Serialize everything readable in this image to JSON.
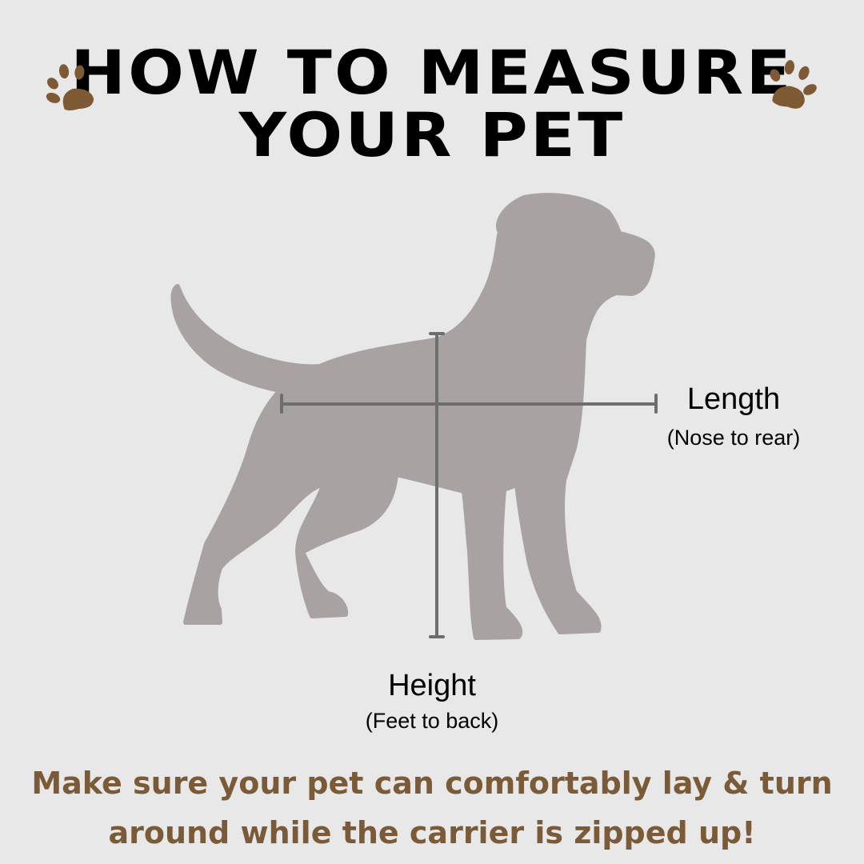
{
  "title": {
    "line1": "HOW TO MEASURE",
    "line2": "YOUR PET"
  },
  "measurements": {
    "length": {
      "label": "Length",
      "sub": "(Nose to rear)"
    },
    "height": {
      "label": "Height",
      "sub": "(Feet to back)"
    }
  },
  "note": {
    "line1": "Make sure your pet can comfortably lay & turn",
    "line2": "around while the carrier is zipped up!"
  },
  "icons": [
    "paw-print-icon",
    "dog-silhouette"
  ],
  "colors": {
    "background": "#e8e8e8",
    "paw": "#7e5a34",
    "dog": "#a8a3a2",
    "measure_line": "#6e6e6e",
    "note_text": "#7a5a37"
  }
}
